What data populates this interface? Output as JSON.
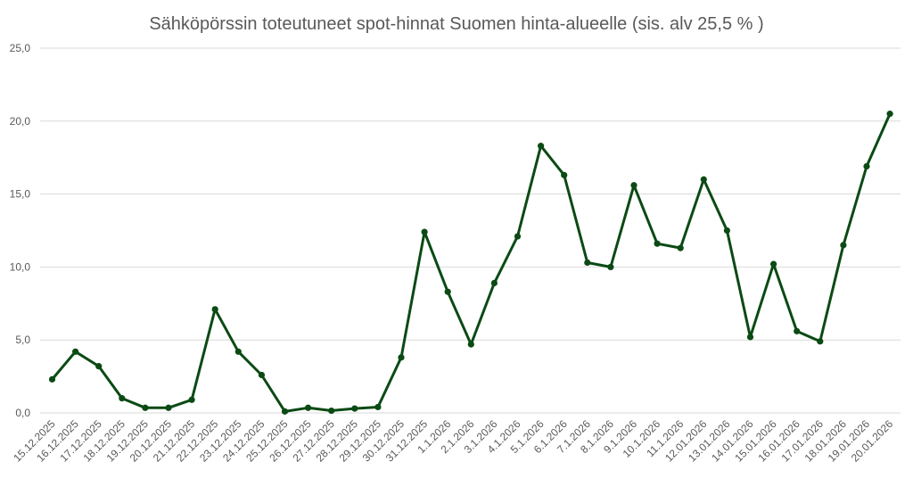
{
  "chart_data": {
    "type": "line",
    "title": "Sähköpörssin toteutuneet spot-hinnat Suomen hinta-alueelle (sis. alv 25,5 % )",
    "xlabel": "",
    "ylabel": "",
    "ylim": [
      0,
      25
    ],
    "yticks": [
      "0,0",
      "5,0",
      "10,0",
      "15,0",
      "20,0",
      "25,0"
    ],
    "ytick_values": [
      0,
      5,
      10,
      15,
      20,
      25
    ],
    "grid": true,
    "legend": "none",
    "color": "#0b4a14",
    "categories": [
      "15.12.2025",
      "16.12.2025",
      "17.12.2025",
      "18.12.2025",
      "19.12.2025",
      "20.12.2025",
      "21.12.2025",
      "22.12.2025",
      "23.12.2025",
      "24.12.2025",
      "25.12.2025",
      "26.12.2025",
      "27.12.2025",
      "28.12.2025",
      "29.12.2025",
      "30.12.2025",
      "31.12.2025",
      "1.1.2026",
      "2.1.2026",
      "3.1.2026",
      "4.1.2026",
      "5.1.2026",
      "6.1.2026",
      "7.1.2026",
      "8.1.2026",
      "9.1.2026",
      "10.1.2026",
      "11.1.2026",
      "12.01.2026",
      "13.01.2026",
      "14.01.2026",
      "15.01.2026",
      "16.01.2026",
      "17.01.2026",
      "18.01.2026",
      "19.01.2026",
      "20.01.2026"
    ],
    "values": [
      2.3,
      4.2,
      3.2,
      1.0,
      0.35,
      0.35,
      0.9,
      7.1,
      4.2,
      2.6,
      0.1,
      0.35,
      0.15,
      0.3,
      0.4,
      3.8,
      12.4,
      8.3,
      4.7,
      8.9,
      12.1,
      18.3,
      16.3,
      10.3,
      10.0,
      15.6,
      11.6,
      11.3,
      16.0,
      12.5,
      5.2,
      10.2,
      5.6,
      4.9,
      11.5,
      16.9,
      20.5
    ]
  }
}
